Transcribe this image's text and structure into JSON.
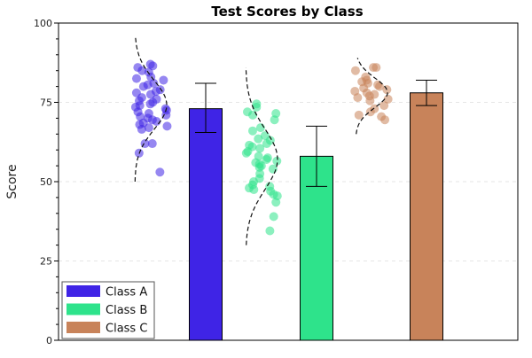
{
  "chart_data": {
    "type": "bar",
    "title": "Test Scores by Class",
    "xlabel": "",
    "ylabel": "Score",
    "ylim": [
      0,
      100
    ],
    "yticks": [
      0,
      25,
      50,
      75,
      100
    ],
    "grid": "horizontal dashed at major ticks",
    "legend_position": "bottom-left",
    "categories": [
      "Class A",
      "Class B",
      "Class C"
    ],
    "series": [
      {
        "name": "Class A",
        "color": "#3f24e6",
        "mean": 73,
        "error_low": 65.5,
        "error_high": 81,
        "points": [
          87,
          86.5,
          86,
          85,
          84.5,
          83,
          82.5,
          82,
          81,
          80.5,
          80,
          79,
          78.5,
          78,
          77.5,
          76.5,
          76,
          75.5,
          75,
          74.5,
          74,
          73.5,
          73,
          72.5,
          72,
          71.5,
          71,
          70.5,
          70,
          69.5,
          69,
          68.5,
          68,
          67.5,
          67,
          66.5,
          62,
          62,
          59,
          53
        ],
        "density_range": [
          50,
          96
        ]
      },
      {
        "name": "Class B",
        "color": "#2ee38b",
        "mean": 58,
        "error_low": 48.5,
        "error_high": 67.5,
        "points": [
          74.5,
          73.5,
          72,
          71.5,
          71,
          69.5,
          67,
          66,
          64.5,
          63.5,
          63,
          62,
          61.5,
          61,
          60.5,
          59.5,
          59,
          58,
          57.5,
          57,
          56.5,
          56,
          55.5,
          55,
          54.5,
          54,
          52.5,
          51,
          50,
          49,
          48.5,
          48,
          47.5,
          47,
          46,
          45.5,
          43.5,
          39,
          34.5
        ],
        "density_range": [
          30,
          86
        ]
      },
      {
        "name": "Class C",
        "color": "#c8835a",
        "mean": 78,
        "error_low": 74,
        "error_high": 82,
        "points": [
          86,
          86,
          85,
          83,
          82,
          81.5,
          81,
          80.5,
          80,
          79.5,
          79,
          78.5,
          78,
          77.5,
          77,
          76.5,
          76,
          75.5,
          74,
          73,
          72,
          71,
          70.5,
          69.5
        ],
        "density_range": [
          65,
          89
        ]
      }
    ]
  }
}
